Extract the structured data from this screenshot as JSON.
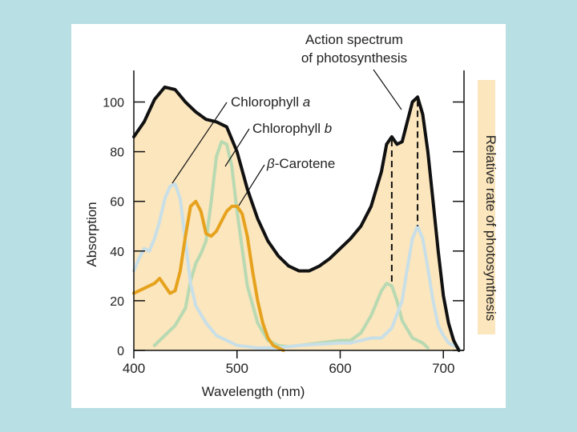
{
  "chart_data": {
    "type": "line",
    "title": "",
    "xlabel": "Wavelength (nm)",
    "ylabel": "Absorption",
    "y2label": "Relative rate of photosynthesis",
    "xlim": [
      400,
      720
    ],
    "ylim": [
      0,
      110
    ],
    "xticks": [
      400,
      500,
      600,
      700
    ],
    "yticks": [
      0,
      20,
      40,
      60,
      80,
      100
    ],
    "grid": false,
    "colors": {
      "action_spectrum": "#111111",
      "fill": "#fbe6bd",
      "chlorophyll_a": "#c9dfe8",
      "chlorophyll_b": "#b8d9b2",
      "carotene": "#e6a21d",
      "right_axis_band": "#fbe6bd"
    },
    "annotations": {
      "action_spectrum_line1": "Action spectrum",
      "action_spectrum_line2": "of photosynthesis",
      "chlorophyll_a_prefix": "Chlorophyll ",
      "chlorophyll_a_italic": "a",
      "chlorophyll_b_prefix": "Chlorophyll ",
      "chlorophyll_b_italic": "b",
      "carotene_greek": "β",
      "carotene_rest": "-Carotene"
    },
    "series": [
      {
        "name": "Action spectrum of photosynthesis",
        "points": [
          [
            400,
            86
          ],
          [
            410,
            92
          ],
          [
            420,
            101
          ],
          [
            430,
            106
          ],
          [
            440,
            105
          ],
          [
            450,
            100
          ],
          [
            460,
            96
          ],
          [
            470,
            93
          ],
          [
            480,
            92
          ],
          [
            490,
            90
          ],
          [
            500,
            80
          ],
          [
            510,
            65
          ],
          [
            520,
            53
          ],
          [
            530,
            44
          ],
          [
            540,
            38
          ],
          [
            550,
            34
          ],
          [
            560,
            32
          ],
          [
            570,
            32
          ],
          [
            580,
            34
          ],
          [
            590,
            37
          ],
          [
            600,
            41
          ],
          [
            610,
            45
          ],
          [
            620,
            50
          ],
          [
            630,
            58
          ],
          [
            640,
            72
          ],
          [
            645,
            83
          ],
          [
            650,
            86
          ],
          [
            655,
            83
          ],
          [
            660,
            84
          ],
          [
            665,
            92
          ],
          [
            670,
            100
          ],
          [
            675,
            102
          ],
          [
            680,
            95
          ],
          [
            685,
            80
          ],
          [
            690,
            60
          ],
          [
            695,
            40
          ],
          [
            700,
            22
          ],
          [
            705,
            11
          ],
          [
            710,
            4
          ],
          [
            715,
            0
          ]
        ]
      },
      {
        "name": "Chlorophyll a",
        "points": [
          [
            400,
            32
          ],
          [
            405,
            37
          ],
          [
            410,
            41
          ],
          [
            415,
            40
          ],
          [
            420,
            45
          ],
          [
            425,
            52
          ],
          [
            430,
            61
          ],
          [
            435,
            66
          ],
          [
            440,
            67
          ],
          [
            445,
            61
          ],
          [
            450,
            44
          ],
          [
            455,
            27
          ],
          [
            460,
            18
          ],
          [
            470,
            11
          ],
          [
            480,
            6
          ],
          [
            490,
            4
          ],
          [
            500,
            2
          ],
          [
            510,
            1.5
          ],
          [
            520,
            1
          ],
          [
            540,
            1
          ],
          [
            560,
            2
          ],
          [
            580,
            2.5
          ],
          [
            600,
            3
          ],
          [
            610,
            3
          ],
          [
            620,
            4
          ],
          [
            630,
            5
          ],
          [
            640,
            5
          ],
          [
            650,
            9
          ],
          [
            660,
            20
          ],
          [
            665,
            33
          ],
          [
            670,
            45
          ],
          [
            675,
            50
          ],
          [
            680,
            45
          ],
          [
            685,
            33
          ],
          [
            690,
            20
          ],
          [
            695,
            10
          ],
          [
            700,
            6
          ],
          [
            705,
            3
          ],
          [
            715,
            1
          ]
        ]
      },
      {
        "name": "Chlorophyll b",
        "points": [
          [
            420,
            2
          ],
          [
            430,
            6
          ],
          [
            440,
            10
          ],
          [
            450,
            17
          ],
          [
            455,
            28
          ],
          [
            460,
            35
          ],
          [
            465,
            39
          ],
          [
            470,
            44
          ],
          [
            475,
            60
          ],
          [
            480,
            78
          ],
          [
            485,
            84
          ],
          [
            490,
            83
          ],
          [
            495,
            74
          ],
          [
            500,
            56
          ],
          [
            510,
            26
          ],
          [
            520,
            11
          ],
          [
            530,
            4
          ],
          [
            540,
            2
          ],
          [
            550,
            1.5
          ],
          [
            560,
            2
          ],
          [
            580,
            3
          ],
          [
            600,
            4
          ],
          [
            610,
            4
          ],
          [
            620,
            7
          ],
          [
            630,
            14
          ],
          [
            640,
            24
          ],
          [
            645,
            27
          ],
          [
            650,
            26
          ],
          [
            655,
            20
          ],
          [
            660,
            12
          ],
          [
            670,
            5
          ],
          [
            680,
            3
          ],
          [
            685,
            1
          ]
        ]
      },
      {
        "name": "β-Carotene",
        "points": [
          [
            400,
            23
          ],
          [
            410,
            25
          ],
          [
            420,
            27
          ],
          [
            425,
            29
          ],
          [
            430,
            26
          ],
          [
            435,
            23
          ],
          [
            440,
            24
          ],
          [
            445,
            32
          ],
          [
            450,
            46
          ],
          [
            455,
            58
          ],
          [
            460,
            60
          ],
          [
            465,
            56
          ],
          [
            470,
            47
          ],
          [
            475,
            46
          ],
          [
            480,
            48
          ],
          [
            485,
            52
          ],
          [
            490,
            56
          ],
          [
            495,
            58
          ],
          [
            500,
            58
          ],
          [
            505,
            55
          ],
          [
            510,
            46
          ],
          [
            515,
            32
          ],
          [
            520,
            20
          ],
          [
            525,
            11
          ],
          [
            530,
            5
          ],
          [
            535,
            2
          ],
          [
            545,
            0
          ]
        ]
      }
    ]
  }
}
